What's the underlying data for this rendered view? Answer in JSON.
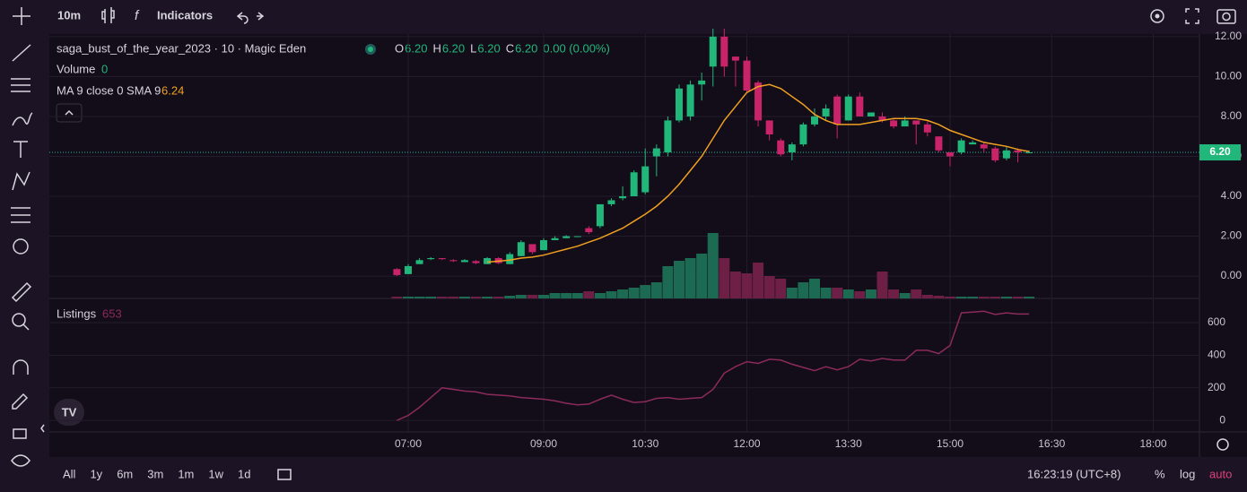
{
  "toolbar": {
    "interval": "10m",
    "indicators": "Indicators"
  },
  "chart_data": {
    "type": "candlestick",
    "title": "saga_bust_of_the_year_2023 · 10 · Magic Eden",
    "ohlc_legend": [
      {
        "label": "O",
        "value": "6.20"
      },
      {
        "label": "H",
        "value": "6.20"
      },
      {
        "label": "L",
        "value": "6.20"
      },
      {
        "label": "C",
        "value": "6.20"
      }
    ],
    "change": "0.00 (0.00%)",
    "x": [
      "06:50",
      "07:00",
      "07:10",
      "07:20",
      "07:30",
      "07:40",
      "07:50",
      "08:00",
      "08:10",
      "08:20",
      "08:30",
      "08:40",
      "08:50",
      "09:00",
      "09:10",
      "09:20",
      "09:30",
      "09:40",
      "09:50",
      "10:00",
      "10:10",
      "10:20",
      "10:30",
      "10:40",
      "10:50",
      "11:00",
      "11:10",
      "11:20",
      "11:30",
      "11:40",
      "11:50",
      "12:00",
      "12:10",
      "12:20",
      "12:30",
      "12:40",
      "12:50",
      "13:00",
      "13:10",
      "13:20",
      "13:30",
      "13:40",
      "13:50",
      "14:00",
      "14:10",
      "14:20",
      "14:30",
      "14:40",
      "14:50",
      "15:00",
      "15:10",
      "15:20",
      "15:30",
      "15:40",
      "15:50",
      "16:00",
      "16:10"
    ],
    "open": [
      0.35,
      0.1,
      0.6,
      0.85,
      0.9,
      0.8,
      0.7,
      0.75,
      0.6,
      0.9,
      0.6,
      1.0,
      1.6,
      1.3,
      1.8,
      1.9,
      2.0,
      2.4,
      2.5,
      3.6,
      3.9,
      4.0,
      4.2,
      6.0,
      6.2,
      7.8,
      8.0,
      9.6,
      10.5,
      12.0,
      11.0,
      10.8,
      9.7,
      7.8,
      6.8,
      6.2,
      6.6,
      7.6,
      8.0,
      9.0,
      7.8,
      9.0,
      8.0,
      8.0,
      7.8,
      7.5,
      7.8,
      7.6,
      7.0,
      6.2,
      6.2,
      6.6,
      6.6,
      6.4,
      5.9,
      6.3,
      6.2
    ],
    "high": [
      0.4,
      0.6,
      0.9,
      0.95,
      0.9,
      0.85,
      0.85,
      0.8,
      0.95,
      0.95,
      1.2,
      1.8,
      1.6,
      1.9,
      2.0,
      2.05,
      2.0,
      2.5,
      3.6,
      3.9,
      4.5,
      5.3,
      6.4,
      6.6,
      8.0,
      9.6,
      9.8,
      10.2,
      12.4,
      12.4,
      11.0,
      11.0,
      9.8,
      7.8,
      6.9,
      6.7,
      7.7,
      8.4,
      8.6,
      9.1,
      9.1,
      9.2,
      8.2,
      8.2,
      7.9,
      8.0,
      7.8,
      7.8,
      7.0,
      6.2,
      6.9,
      6.8,
      6.7,
      6.5,
      6.5,
      6.4,
      6.3
    ],
    "low": [
      0.0,
      0.1,
      0.6,
      0.8,
      0.8,
      0.7,
      0.7,
      0.6,
      0.6,
      0.6,
      0.6,
      1.0,
      1.1,
      1.3,
      1.8,
      1.9,
      2.0,
      2.1,
      2.4,
      3.5,
      3.8,
      4.0,
      4.1,
      5.0,
      6.0,
      7.7,
      7.8,
      8.8,
      9.5,
      10.0,
      9.5,
      9.2,
      7.5,
      6.8,
      6.0,
      5.8,
      6.5,
      7.5,
      7.8,
      6.9,
      7.8,
      8.0,
      8.0,
      7.7,
      7.4,
      7.5,
      6.6,
      7.0,
      6.2,
      5.5,
      6.1,
      6.6,
      6.2,
      5.7,
      5.8,
      5.7,
      6.2
    ],
    "close": [
      0.05,
      0.5,
      0.8,
      0.9,
      0.85,
      0.75,
      0.8,
      0.65,
      0.9,
      0.65,
      1.1,
      1.7,
      1.2,
      1.8,
      1.9,
      2.0,
      2.0,
      2.2,
      3.6,
      3.8,
      4.0,
      5.2,
      5.5,
      6.4,
      7.8,
      9.4,
      9.6,
      9.8,
      12.0,
      10.5,
      10.8,
      9.3,
      7.8,
      7.1,
      6.1,
      6.6,
      7.6,
      8.0,
      8.4,
      7.6,
      9.0,
      8.0,
      8.2,
      7.8,
      7.5,
      7.8,
      7.6,
      7.2,
      6.3,
      6.0,
      6.8,
      6.7,
      6.4,
      5.8,
      6.3,
      6.2,
      6.2
    ],
    "up_color": "#22b77a",
    "down_color": "#c9236a",
    "ylim": [
      -1.12,
      12.13
    ],
    "yticks": [
      {
        "value": 0,
        "label": "0.00"
      },
      {
        "value": 2,
        "label": "2.00"
      },
      {
        "value": 4,
        "label": "4.00"
      },
      {
        "value": 6,
        "label": "6.00"
      },
      {
        "value": 8,
        "label": "8.00"
      },
      {
        "value": 10,
        "label": "10.00"
      },
      {
        "value": 12,
        "label": "12.00"
      }
    ],
    "price_line": {
      "value": 6.2,
      "label": "6.20"
    },
    "xticks": [
      "07:00",
      "09:00",
      "10:30",
      "12:00",
      "13:30",
      "15:00",
      "16:30",
      "18:00"
    ],
    "grid": true,
    "volume": {
      "name": "Volume",
      "value_label": "0",
      "up_color": "#1d6a52",
      "down_color": "#6e1f45",
      "values": [
        2,
        2,
        2,
        2,
        2,
        2,
        2,
        2,
        2,
        2,
        3,
        4,
        4,
        4,
        6,
        6,
        6,
        8,
        6,
        8,
        10,
        12,
        15,
        18,
        36,
        42,
        45,
        50,
        73,
        45,
        30,
        28,
        40,
        25,
        22,
        12,
        18,
        22,
        12,
        12,
        10,
        8,
        10,
        30,
        10,
        6,
        10,
        4,
        3,
        2,
        2,
        2,
        2,
        2,
        2,
        2,
        2
      ]
    },
    "ma": {
      "name": "MA 9 close 0 SMA 9",
      "value_label": "6.24",
      "color": "#f0a020",
      "values": [
        null,
        null,
        null,
        null,
        null,
        null,
        null,
        null,
        0.7,
        0.75,
        0.8,
        0.9,
        0.95,
        1.05,
        1.2,
        1.35,
        1.5,
        1.7,
        1.9,
        2.15,
        2.4,
        2.75,
        3.1,
        3.5,
        4.0,
        4.6,
        5.3,
        6.0,
        6.9,
        7.8,
        8.5,
        9.2,
        9.5,
        9.6,
        9.4,
        9.0,
        8.6,
        8.1,
        7.8,
        7.6,
        7.6,
        7.6,
        7.7,
        7.8,
        7.9,
        7.9,
        7.9,
        7.8,
        7.6,
        7.3,
        7.1,
        6.9,
        6.7,
        6.6,
        6.5,
        6.35,
        6.24
      ]
    },
    "listings": {
      "type": "line",
      "name": "Listings",
      "value_label": "653",
      "color": "#8c2a5c",
      "ylim": [
        -60,
        710
      ],
      "yticks": [
        0,
        200,
        400,
        600
      ],
      "values": [
        0,
        30,
        80,
        140,
        200,
        190,
        180,
        175,
        160,
        155,
        150,
        140,
        135,
        130,
        120,
        105,
        95,
        100,
        130,
        155,
        130,
        110,
        115,
        135,
        140,
        130,
        135,
        140,
        190,
        290,
        330,
        360,
        350,
        375,
        370,
        345,
        325,
        305,
        330,
        310,
        330,
        375,
        365,
        380,
        370,
        370,
        430,
        430,
        410,
        460,
        660,
        665,
        670,
        650,
        660,
        653,
        653
      ]
    }
  },
  "bottom_bar": {
    "ranges": [
      "All",
      "1y",
      "6m",
      "3m",
      "1m",
      "1w",
      "1d"
    ],
    "clock": "16:23:19 (UTC+8)",
    "scale_options": [
      "%",
      "log",
      "auto"
    ]
  }
}
